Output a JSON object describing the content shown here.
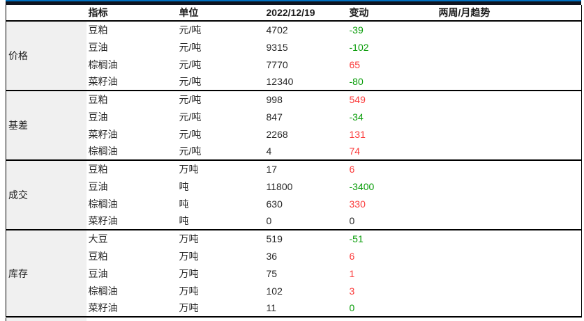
{
  "table": {
    "columns": {
      "indicator": "指标",
      "unit": "单位",
      "date": "2022/12/19",
      "change": "变动",
      "trend": "两周/月趋势"
    },
    "sections": [
      {
        "group": "价格",
        "rows": [
          {
            "indicator": "豆粕",
            "unit": "元/吨",
            "value": "4702",
            "change": "-39",
            "change_color": "green",
            "trend": ""
          },
          {
            "indicator": "豆油",
            "unit": "元/吨",
            "value": "9315",
            "change": "-102",
            "change_color": "green",
            "trend": ""
          },
          {
            "indicator": "棕榈油",
            "unit": "元/吨",
            "value": "7770",
            "change": "65",
            "change_color": "red",
            "trend": ""
          },
          {
            "indicator": "菜籽油",
            "unit": "元/吨",
            "value": "12340",
            "change": "-80",
            "change_color": "green",
            "trend": ""
          }
        ]
      },
      {
        "group": "基差",
        "rows": [
          {
            "indicator": "豆粕",
            "unit": "元/吨",
            "value": "998",
            "change": "549",
            "change_color": "red",
            "trend": ""
          },
          {
            "indicator": "豆油",
            "unit": "元/吨",
            "value": "847",
            "change": "-34",
            "change_color": "green",
            "trend": ""
          },
          {
            "indicator": "菜籽油",
            "unit": "元/吨",
            "value": "2268",
            "change": "131",
            "change_color": "red",
            "trend": ""
          },
          {
            "indicator": "棕榈油",
            "unit": "元/吨",
            "value": "4",
            "change": "74",
            "change_color": "red",
            "trend": ""
          }
        ]
      },
      {
        "group": "成交",
        "rows": [
          {
            "indicator": "豆粕",
            "unit": "万吨",
            "value": "17",
            "change": "6",
            "change_color": "red",
            "trend": ""
          },
          {
            "indicator": "豆油",
            "unit": "吨",
            "value": "11800",
            "change": "-3400",
            "change_color": "green",
            "trend": ""
          },
          {
            "indicator": "棕榈油",
            "unit": "吨",
            "value": "630",
            "change": "330",
            "change_color": "red",
            "trend": ""
          },
          {
            "indicator": "菜籽油",
            "unit": "吨",
            "value": "0",
            "change": "0",
            "change_color": "black",
            "trend": ""
          }
        ]
      },
      {
        "group": "库存",
        "rows": [
          {
            "indicator": "大豆",
            "unit": "万吨",
            "value": "519",
            "change": "-51",
            "change_color": "green",
            "trend": ""
          },
          {
            "indicator": "豆粕",
            "unit": "万吨",
            "value": "36",
            "change": "6",
            "change_color": "red",
            "trend": ""
          },
          {
            "indicator": "豆油",
            "unit": "万吨",
            "value": "75",
            "change": "1",
            "change_color": "red",
            "trend": ""
          },
          {
            "indicator": "棕榈油",
            "unit": "万吨",
            "value": "102",
            "change": "3",
            "change_color": "red",
            "trend": ""
          },
          {
            "indicator": "菜籽油",
            "unit": "万吨",
            "value": "11",
            "change": "0",
            "change_color": "green",
            "trend": ""
          }
        ]
      }
    ]
  },
  "colors": {
    "change_up_red": "#fb3a3a",
    "change_down_green": "#089c08",
    "change_flat_black": "#262626",
    "top_accent_blue": "#0070c0",
    "top_bar_black": "#10141f",
    "group_cell_gray": "#f0f0f0"
  }
}
